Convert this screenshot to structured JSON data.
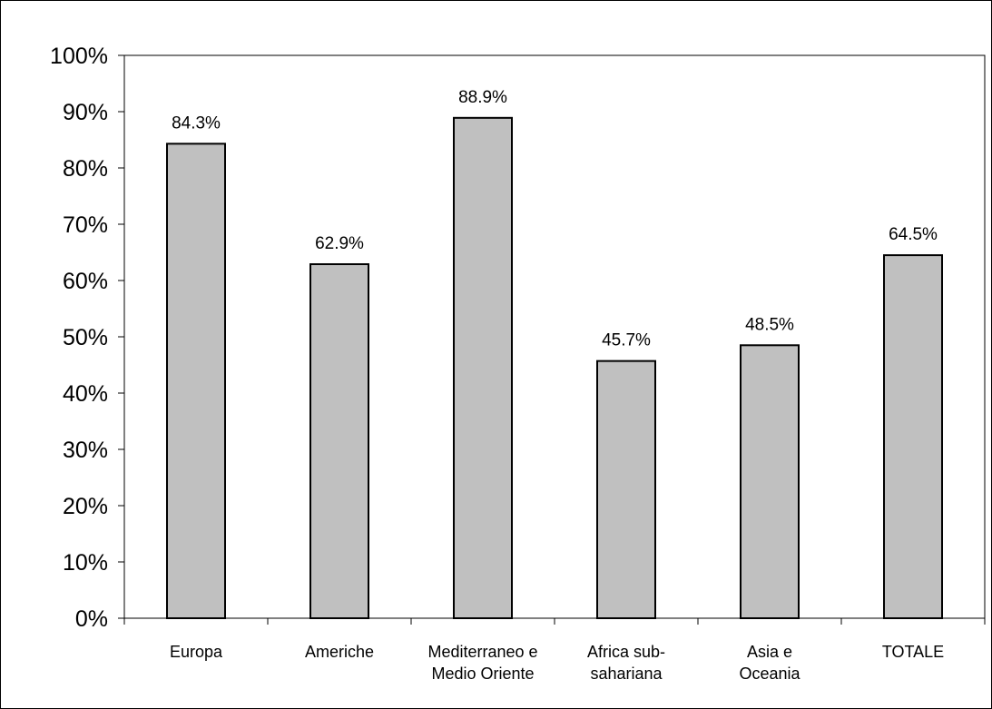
{
  "chart_data": {
    "type": "bar",
    "categories": [
      [
        "Europa"
      ],
      [
        "Americhe"
      ],
      [
        "Mediterraneo e",
        "Medio Oriente"
      ],
      [
        "Africa sub-",
        "sahariana"
      ],
      [
        "Asia e",
        "Oceania"
      ],
      [
        "TOTALE"
      ]
    ],
    "values": [
      84.3,
      62.9,
      88.9,
      45.7,
      48.5,
      64.5
    ],
    "data_labels": [
      "84.3%",
      "",
      "88.9%",
      "",
      "48.5%",
      ""
    ],
    "data_labels_shown": [
      "84.3%",
      "62.9%",
      "88.9%",
      "45.7%",
      "48.5%",
      "64.5%"
    ],
    "ylim": [
      0,
      100
    ],
    "yticks": [
      "0%",
      "10%",
      "20%",
      "30%",
      "40%",
      "50%",
      "60%",
      "70%",
      "80%",
      "90%",
      "100%"
    ],
    "title": "",
    "xlabel": "",
    "ylabel": "",
    "grid": false,
    "legend": "none",
    "colors": {
      "bar_fill": "#c0c0c0",
      "bar_stroke": "#000000",
      "axis": "#000000"
    }
  }
}
